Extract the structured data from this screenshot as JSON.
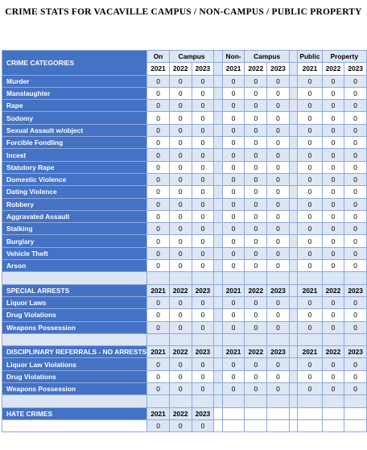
{
  "title": "CRIME STATS FOR VACAVILLE CAMPUS / NON-CAMPUS / PUBLIC PROPERTY",
  "groups": {
    "on_campus": [
      "On",
      "Campus"
    ],
    "non_campus": [
      "Non-",
      "Campus"
    ],
    "public_property": [
      "Public",
      "Property"
    ]
  },
  "years": [
    "2021",
    "2022",
    "2023"
  ],
  "crime_header": "CRIME CATEGORIES",
  "crimes": [
    {
      "label": "Murder",
      "on": [
        "0",
        "0",
        "0"
      ],
      "non": [
        "0",
        "0",
        "0"
      ],
      "pub": [
        "0",
        "0",
        "0"
      ]
    },
    {
      "label": "Manslaughter",
      "on": [
        "0",
        "0",
        "0"
      ],
      "non": [
        "0",
        "0",
        "0"
      ],
      "pub": [
        "0",
        "0",
        "0"
      ]
    },
    {
      "label": "Rape",
      "on": [
        "0",
        "0",
        "0"
      ],
      "non": [
        "0",
        "0",
        "0"
      ],
      "pub": [
        "0",
        "0",
        "0"
      ]
    },
    {
      "label": "Sodomy",
      "on": [
        "0",
        "0",
        "0"
      ],
      "non": [
        "0",
        "0",
        "0"
      ],
      "pub": [
        "0",
        "0",
        "0"
      ]
    },
    {
      "label": "Sexual Assault w/object",
      "on": [
        "0",
        "0",
        "0"
      ],
      "non": [
        "0",
        "0",
        "0"
      ],
      "pub": [
        "0",
        "0",
        "0"
      ]
    },
    {
      "label": "Forcible Fondling",
      "on": [
        "0",
        "0",
        "0"
      ],
      "non": [
        "0",
        "0",
        "0"
      ],
      "pub": [
        "0",
        "0",
        "0"
      ]
    },
    {
      "label": "Incest",
      "on": [
        "0",
        "0",
        "0"
      ],
      "non": [
        "0",
        "0",
        "0"
      ],
      "pub": [
        "0",
        "0",
        "0"
      ]
    },
    {
      "label": "Statutory Rape",
      "on": [
        "0",
        "0",
        "0"
      ],
      "non": [
        "0",
        "0",
        "0"
      ],
      "pub": [
        "0",
        "0",
        "0"
      ]
    },
    {
      "label": "Domestic Violence",
      "on": [
        "0",
        "0",
        "0"
      ],
      "non": [
        "0",
        "0",
        "0"
      ],
      "pub": [
        "0",
        "0",
        "0"
      ]
    },
    {
      "label": "Dating Violence",
      "on": [
        "0",
        "0",
        "0"
      ],
      "non": [
        "0",
        "0",
        "0"
      ],
      "pub": [
        "0",
        "0",
        "0"
      ]
    },
    {
      "label": "Robbery",
      "on": [
        "0",
        "0",
        "0"
      ],
      "non": [
        "0",
        "0",
        "0"
      ],
      "pub": [
        "0",
        "0",
        "0"
      ]
    },
    {
      "label": "Aggravated Assault",
      "on": [
        "0",
        "0",
        "0"
      ],
      "non": [
        "0",
        "0",
        "0"
      ],
      "pub": [
        "0",
        "0",
        "0"
      ]
    },
    {
      "label": "Stalking",
      "on": [
        "0",
        "0",
        "0"
      ],
      "non": [
        "0",
        "0",
        "0"
      ],
      "pub": [
        "0",
        "0",
        "0"
      ]
    },
    {
      "label": "Burglary",
      "on": [
        "0",
        "0",
        "0"
      ],
      "non": [
        "0",
        "0",
        "0"
      ],
      "pub": [
        "0",
        "0",
        "0"
      ]
    },
    {
      "label": "Vehicle Theft",
      "on": [
        "0",
        "0",
        "0"
      ],
      "non": [
        "0",
        "0",
        "0"
      ],
      "pub": [
        "0",
        "0",
        "0"
      ]
    },
    {
      "label": "Arson",
      "on": [
        "0",
        "0",
        "0"
      ],
      "non": [
        "0",
        "0",
        "0"
      ],
      "pub": [
        "0",
        "0",
        "0"
      ]
    }
  ],
  "special_header": "SPECIAL ARRESTS",
  "special": [
    {
      "label": "Liquor Laws",
      "on": [
        "0",
        "0",
        "0"
      ],
      "non": [
        "0",
        "0",
        "0"
      ],
      "pub": [
        "0",
        "0",
        "0"
      ]
    },
    {
      "label": "Drug Violations",
      "on": [
        "0",
        "0",
        "0"
      ],
      "non": [
        "0",
        "0",
        "0"
      ],
      "pub": [
        "0",
        "0",
        "0"
      ]
    },
    {
      "label": "Weapons Possession",
      "on": [
        "0",
        "0",
        "0"
      ],
      "non": [
        "0",
        "0",
        "0"
      ],
      "pub": [
        "0",
        "0",
        "0"
      ]
    }
  ],
  "disciplinary_header": "DISCIPLINARY REFERRALS - NO ARRESTS",
  "disciplinary": [
    {
      "label": "Liquor Law Violations",
      "on": [
        "0",
        "0",
        "0"
      ],
      "non": [
        "0",
        "0",
        "0"
      ],
      "pub": [
        "0",
        "0",
        "0"
      ]
    },
    {
      "label": "Drug Violations",
      "on": [
        "0",
        "0",
        "0"
      ],
      "non": [
        "0",
        "0",
        "0"
      ],
      "pub": [
        "0",
        "0",
        "0"
      ]
    },
    {
      "label": "Weapons Possession",
      "on": [
        "0",
        "0",
        "0"
      ],
      "non": [
        "0",
        "0",
        "0"
      ],
      "pub": [
        "0",
        "0",
        "0"
      ]
    }
  ],
  "hate_header": "HATE CRIMES",
  "hate": {
    "on": [
      "0",
      "0",
      "0"
    ]
  },
  "colors": {
    "label_bg": "#4472c4",
    "band_bg": "#dce6f4",
    "grid": "#8fa9dc"
  }
}
